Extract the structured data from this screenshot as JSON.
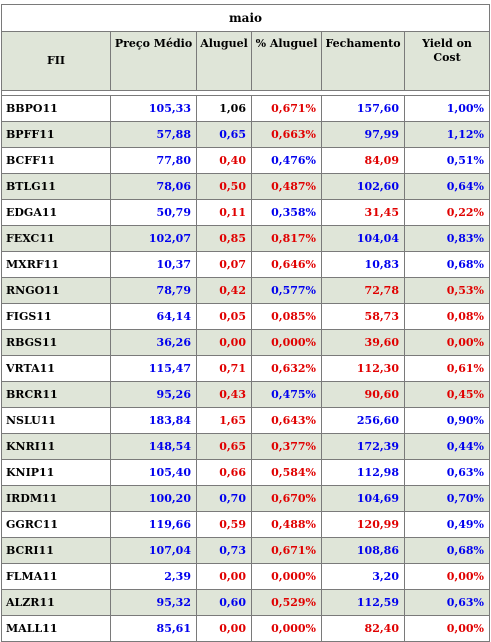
{
  "title": "maio",
  "headers": {
    "fii": "FII",
    "preco": "Preço Médio",
    "aluguel": "Aluguel",
    "pct_aluguel": "% Aluguel",
    "fechamento": "Fechamento",
    "yoc": "Yield on Cost"
  },
  "colors": {
    "positive": "#0000ee",
    "negative": "#e00000",
    "header_bg": "#dfe5d8"
  },
  "rows": [
    {
      "fii": "BBPO11",
      "preco": "105,33",
      "aluguel": "1,06",
      "pct": "0,671%",
      "fech": "157,60",
      "yoc": "1,00%",
      "c": [
        "blue",
        "black",
        "red",
        "blue",
        "blue"
      ]
    },
    {
      "fii": "BPFF11",
      "preco": "57,88",
      "aluguel": "0,65",
      "pct": "0,663%",
      "fech": "97,99",
      "yoc": "1,12%",
      "c": [
        "blue",
        "blue",
        "red",
        "blue",
        "blue"
      ]
    },
    {
      "fii": "BCFF11",
      "preco": "77,80",
      "aluguel": "0,40",
      "pct": "0,476%",
      "fech": "84,09",
      "yoc": "0,51%",
      "c": [
        "blue",
        "red",
        "blue",
        "red",
        "blue"
      ]
    },
    {
      "fii": "BTLG11",
      "preco": "78,06",
      "aluguel": "0,50",
      "pct": "0,487%",
      "fech": "102,60",
      "yoc": "0,64%",
      "c": [
        "blue",
        "red",
        "red",
        "blue",
        "blue"
      ]
    },
    {
      "fii": "EDGA11",
      "preco": "50,79",
      "aluguel": "0,11",
      "pct": "0,358%",
      "fech": "31,45",
      "yoc": "0,22%",
      "c": [
        "blue",
        "red",
        "blue",
        "red",
        "red"
      ]
    },
    {
      "fii": "FEXC11",
      "preco": "102,07",
      "aluguel": "0,85",
      "pct": "0,817%",
      "fech": "104,04",
      "yoc": "0,83%",
      "c": [
        "blue",
        "red",
        "red",
        "blue",
        "blue"
      ]
    },
    {
      "fii": "MXRF11",
      "preco": "10,37",
      "aluguel": "0,07",
      "pct": "0,646%",
      "fech": "10,83",
      "yoc": "0,68%",
      "c": [
        "blue",
        "red",
        "red",
        "blue",
        "blue"
      ]
    },
    {
      "fii": "RNGO11",
      "preco": "78,79",
      "aluguel": "0,42",
      "pct": "0,577%",
      "fech": "72,78",
      "yoc": "0,53%",
      "c": [
        "blue",
        "red",
        "blue",
        "red",
        "red"
      ]
    },
    {
      "fii": "FIGS11",
      "preco": "64,14",
      "aluguel": "0,05",
      "pct": "0,085%",
      "fech": "58,73",
      "yoc": "0,08%",
      "c": [
        "blue",
        "red",
        "red",
        "red",
        "red"
      ]
    },
    {
      "fii": "RBGS11",
      "preco": "36,26",
      "aluguel": "0,00",
      "pct": "0,000%",
      "fech": "39,60",
      "yoc": "0,00%",
      "c": [
        "blue",
        "red",
        "red",
        "red",
        "red"
      ]
    },
    {
      "fii": "VRTA11",
      "preco": "115,47",
      "aluguel": "0,71",
      "pct": "0,632%",
      "fech": "112,30",
      "yoc": "0,61%",
      "c": [
        "blue",
        "red",
        "red",
        "red",
        "red"
      ]
    },
    {
      "fii": "BRCR11",
      "preco": "95,26",
      "aluguel": "0,43",
      "pct": "0,475%",
      "fech": "90,60",
      "yoc": "0,45%",
      "c": [
        "blue",
        "red",
        "blue",
        "red",
        "red"
      ]
    },
    {
      "fii": "NSLU11",
      "preco": "183,84",
      "aluguel": "1,65",
      "pct": "0,643%",
      "fech": "256,60",
      "yoc": "0,90%",
      "c": [
        "blue",
        "red",
        "red",
        "blue",
        "blue"
      ]
    },
    {
      "fii": "KNRI11",
      "preco": "148,54",
      "aluguel": "0,65",
      "pct": "0,377%",
      "fech": "172,39",
      "yoc": "0,44%",
      "c": [
        "blue",
        "red",
        "red",
        "blue",
        "blue"
      ]
    },
    {
      "fii": "KNIP11",
      "preco": "105,40",
      "aluguel": "0,66",
      "pct": "0,584%",
      "fech": "112,98",
      "yoc": "0,63%",
      "c": [
        "blue",
        "red",
        "red",
        "blue",
        "blue"
      ]
    },
    {
      "fii": "IRDM11",
      "preco": "100,20",
      "aluguel": "0,70",
      "pct": "0,670%",
      "fech": "104,69",
      "yoc": "0,70%",
      "c": [
        "blue",
        "blue",
        "red",
        "blue",
        "blue"
      ]
    },
    {
      "fii": "GGRC11",
      "preco": "119,66",
      "aluguel": "0,59",
      "pct": "0,488%",
      "fech": "120,99",
      "yoc": "0,49%",
      "c": [
        "blue",
        "red",
        "red",
        "red",
        "blue"
      ]
    },
    {
      "fii": "BCRI11",
      "preco": "107,04",
      "aluguel": "0,73",
      "pct": "0,671%",
      "fech": "108,86",
      "yoc": "0,68%",
      "c": [
        "blue",
        "blue",
        "red",
        "blue",
        "blue"
      ]
    },
    {
      "fii": "FLMA11",
      "preco": "2,39",
      "aluguel": "0,00",
      "pct": "0,000%",
      "fech": "3,20",
      "yoc": "0,00%",
      "c": [
        "blue",
        "red",
        "red",
        "blue",
        "red"
      ]
    },
    {
      "fii": "ALZR11",
      "preco": "95,32",
      "aluguel": "0,60",
      "pct": "0,529%",
      "fech": "112,59",
      "yoc": "0,63%",
      "c": [
        "blue",
        "blue",
        "red",
        "blue",
        "blue"
      ]
    },
    {
      "fii": "MALL11",
      "preco": "85,61",
      "aluguel": "0,00",
      "pct": "0,000%",
      "fech": "82,40",
      "yoc": "0,00%",
      "c": [
        "blue",
        "red",
        "red",
        "red",
        "red"
      ]
    }
  ]
}
